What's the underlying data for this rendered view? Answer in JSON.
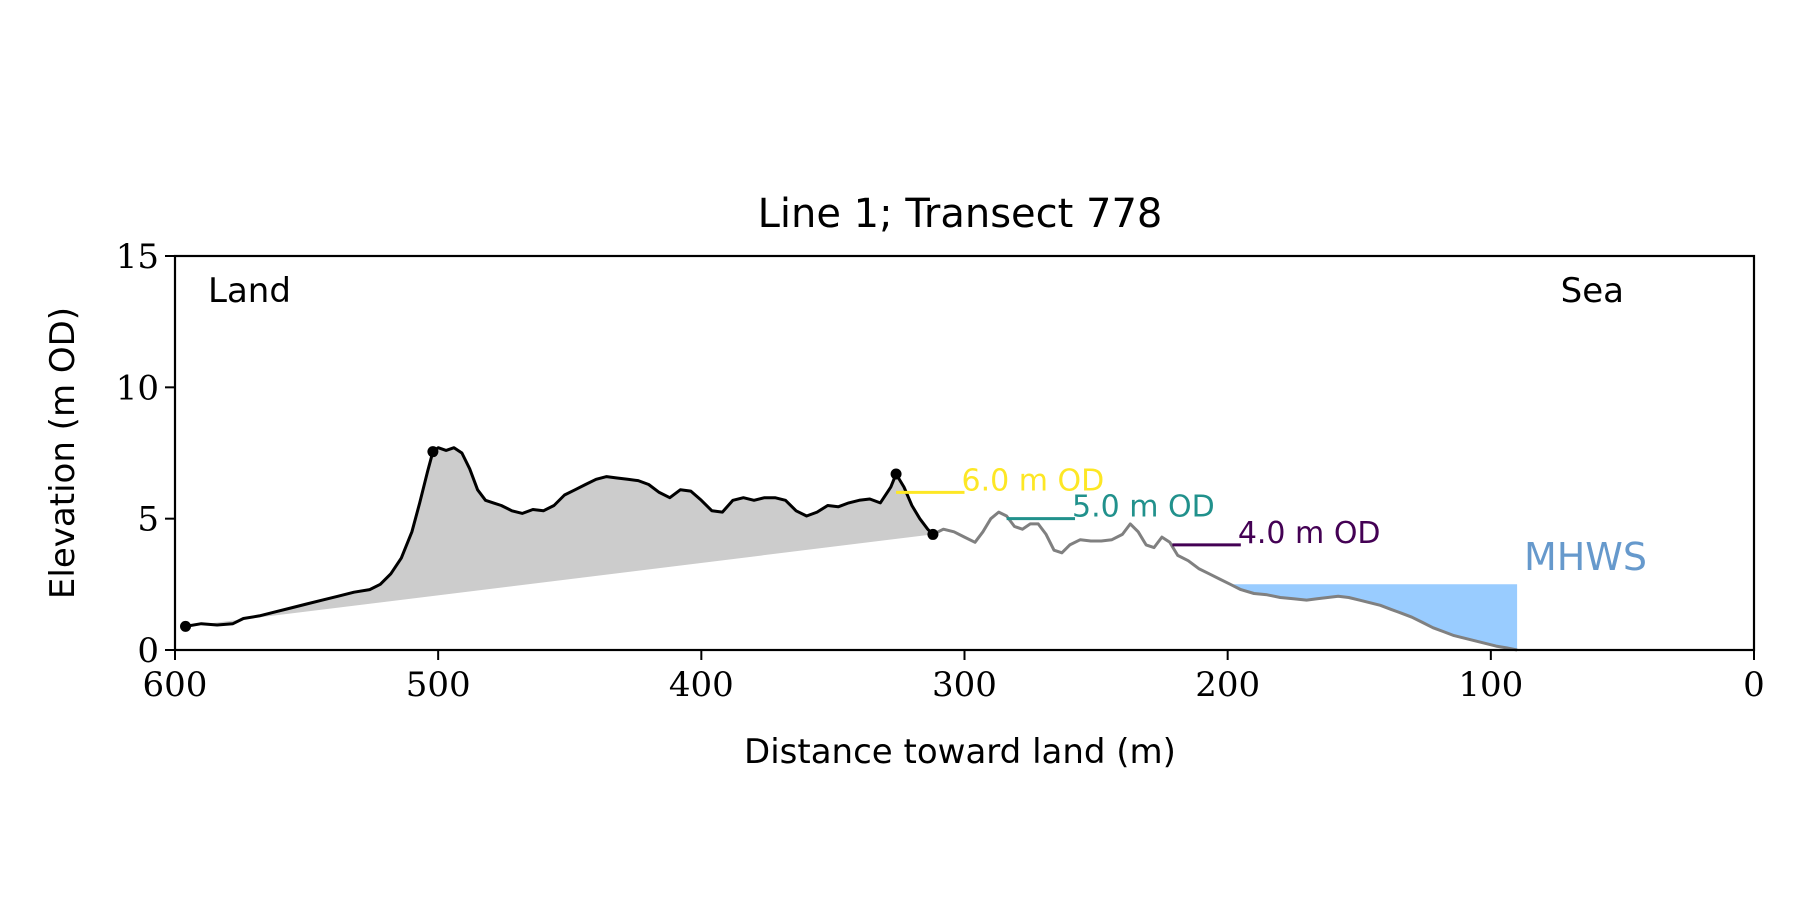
{
  "chart_data": {
    "type": "line",
    "title": "Line 1; Transect 778",
    "xlabel": "Distance toward land (m)",
    "ylabel": "Elevation (m OD)",
    "xlim": [
      600,
      0
    ],
    "ylim": [
      0,
      15
    ],
    "xticks": [
      600,
      500,
      400,
      300,
      200,
      100,
      0
    ],
    "yticks": [
      0,
      5,
      10,
      15
    ],
    "grid": false,
    "annotations": {
      "land": "Land",
      "sea": "Sea"
    },
    "series": [
      {
        "color": "#000000",
        "points": [
          [
            596,
            0.9
          ],
          [
            590,
            1.0
          ],
          [
            584,
            0.95
          ],
          [
            578,
            1.0
          ],
          [
            574,
            1.2
          ],
          [
            568,
            1.3
          ],
          [
            562,
            1.45
          ],
          [
            556,
            1.6
          ],
          [
            550,
            1.75
          ],
          [
            544,
            1.9
          ],
          [
            538,
            2.05
          ],
          [
            532,
            2.2
          ],
          [
            526,
            2.3
          ],
          [
            522,
            2.5
          ],
          [
            518,
            2.9
          ],
          [
            514,
            3.5
          ],
          [
            510,
            4.5
          ],
          [
            507,
            5.6
          ],
          [
            504,
            6.8
          ],
          [
            502,
            7.55
          ],
          [
            500,
            7.7
          ],
          [
            497,
            7.6
          ],
          [
            494,
            7.7
          ],
          [
            491,
            7.5
          ],
          [
            488,
            6.9
          ],
          [
            485,
            6.1
          ],
          [
            482,
            5.7
          ],
          [
            479,
            5.6
          ],
          [
            476,
            5.5
          ],
          [
            472,
            5.3
          ],
          [
            468,
            5.2
          ],
          [
            464,
            5.35
          ],
          [
            460,
            5.3
          ],
          [
            456,
            5.5
          ],
          [
            452,
            5.9
          ],
          [
            448,
            6.1
          ],
          [
            444,
            6.3
          ],
          [
            440,
            6.5
          ],
          [
            436,
            6.6
          ],
          [
            432,
            6.55
          ],
          [
            428,
            6.5
          ],
          [
            424,
            6.45
          ],
          [
            420,
            6.3
          ],
          [
            416,
            6.0
          ],
          [
            412,
            5.8
          ],
          [
            408,
            6.1
          ],
          [
            404,
            6.05
          ],
          [
            400,
            5.7
          ],
          [
            396,
            5.3
          ],
          [
            392,
            5.25
          ],
          [
            388,
            5.7
          ],
          [
            384,
            5.8
          ],
          [
            380,
            5.7
          ],
          [
            376,
            5.8
          ],
          [
            372,
            5.8
          ],
          [
            368,
            5.7
          ],
          [
            364,
            5.3
          ],
          [
            360,
            5.1
          ],
          [
            356,
            5.25
          ],
          [
            352,
            5.5
          ],
          [
            348,
            5.45
          ],
          [
            344,
            5.6
          ],
          [
            340,
            5.7
          ],
          [
            336,
            5.75
          ],
          [
            332,
            5.6
          ],
          [
            328,
            6.2
          ],
          [
            326,
            6.7
          ],
          [
            323,
            6.2
          ],
          [
            320,
            5.5
          ],
          [
            317,
            5.0
          ],
          [
            314,
            4.6
          ],
          [
            312,
            4.4
          ]
        ]
      },
      {
        "color": "#808080",
        "points": [
          [
            312,
            4.4
          ],
          [
            308,
            4.6
          ],
          [
            304,
            4.5
          ],
          [
            300,
            4.3
          ],
          [
            296,
            4.1
          ],
          [
            293,
            4.5
          ],
          [
            290,
            5.0
          ],
          [
            287,
            5.25
          ],
          [
            284,
            5.1
          ],
          [
            281,
            4.7
          ],
          [
            278,
            4.6
          ],
          [
            275,
            4.8
          ],
          [
            272,
            4.8
          ],
          [
            269,
            4.4
          ],
          [
            266,
            3.8
          ],
          [
            263,
            3.7
          ],
          [
            260,
            4.0
          ],
          [
            256,
            4.2
          ],
          [
            252,
            4.15
          ],
          [
            248,
            4.15
          ],
          [
            244,
            4.2
          ],
          [
            240,
            4.4
          ],
          [
            237,
            4.8
          ],
          [
            234,
            4.5
          ],
          [
            231,
            4.0
          ],
          [
            228,
            3.9
          ],
          [
            225,
            4.3
          ],
          [
            222,
            4.1
          ],
          [
            219,
            3.6
          ],
          [
            215,
            3.4
          ],
          [
            211,
            3.1
          ],
          [
            207,
            2.9
          ],
          [
            203,
            2.7
          ],
          [
            199,
            2.5
          ],
          [
            195,
            2.3
          ],
          [
            190,
            2.15
          ],
          [
            185,
            2.1
          ],
          [
            180,
            2.0
          ],
          [
            175,
            1.95
          ],
          [
            170,
            1.9
          ],
          [
            166,
            1.95
          ],
          [
            162,
            2.0
          ],
          [
            158,
            2.05
          ],
          [
            154,
            2.0
          ],
          [
            150,
            1.9
          ],
          [
            146,
            1.8
          ],
          [
            142,
            1.7
          ],
          [
            138,
            1.55
          ],
          [
            134,
            1.4
          ],
          [
            130,
            1.25
          ],
          [
            126,
            1.05
          ],
          [
            122,
            0.85
          ],
          [
            118,
            0.7
          ],
          [
            114,
            0.55
          ],
          [
            110,
            0.45
          ],
          [
            106,
            0.35
          ],
          [
            102,
            0.25
          ],
          [
            98,
            0.15
          ],
          [
            94,
            0.08
          ],
          [
            90,
            0.0
          ]
        ]
      }
    ],
    "fill": {
      "color": "#cccccc"
    },
    "markers": [
      [
        596,
        0.9
      ],
      [
        502,
        7.55
      ],
      [
        326,
        6.7
      ],
      [
        312,
        4.4
      ]
    ],
    "mhws": {
      "label": "MHWS",
      "level": 2.5,
      "x_from": 200,
      "x_to": 90,
      "fill_color": "#99ccff",
      "label_color": "#6699cc"
    },
    "contours": [
      {
        "label": "6.0 m OD",
        "elevation": 6.0,
        "x_from": 326,
        "x_to": 300,
        "color": "#fde725"
      },
      {
        "label": "5.0 m OD",
        "elevation": 5.0,
        "x_from": 284,
        "x_to": 258,
        "color": "#21918c"
      },
      {
        "label": "4.0 m OD",
        "elevation": 4.0,
        "x_from": 221,
        "x_to": 195,
        "color": "#440154"
      }
    ]
  }
}
